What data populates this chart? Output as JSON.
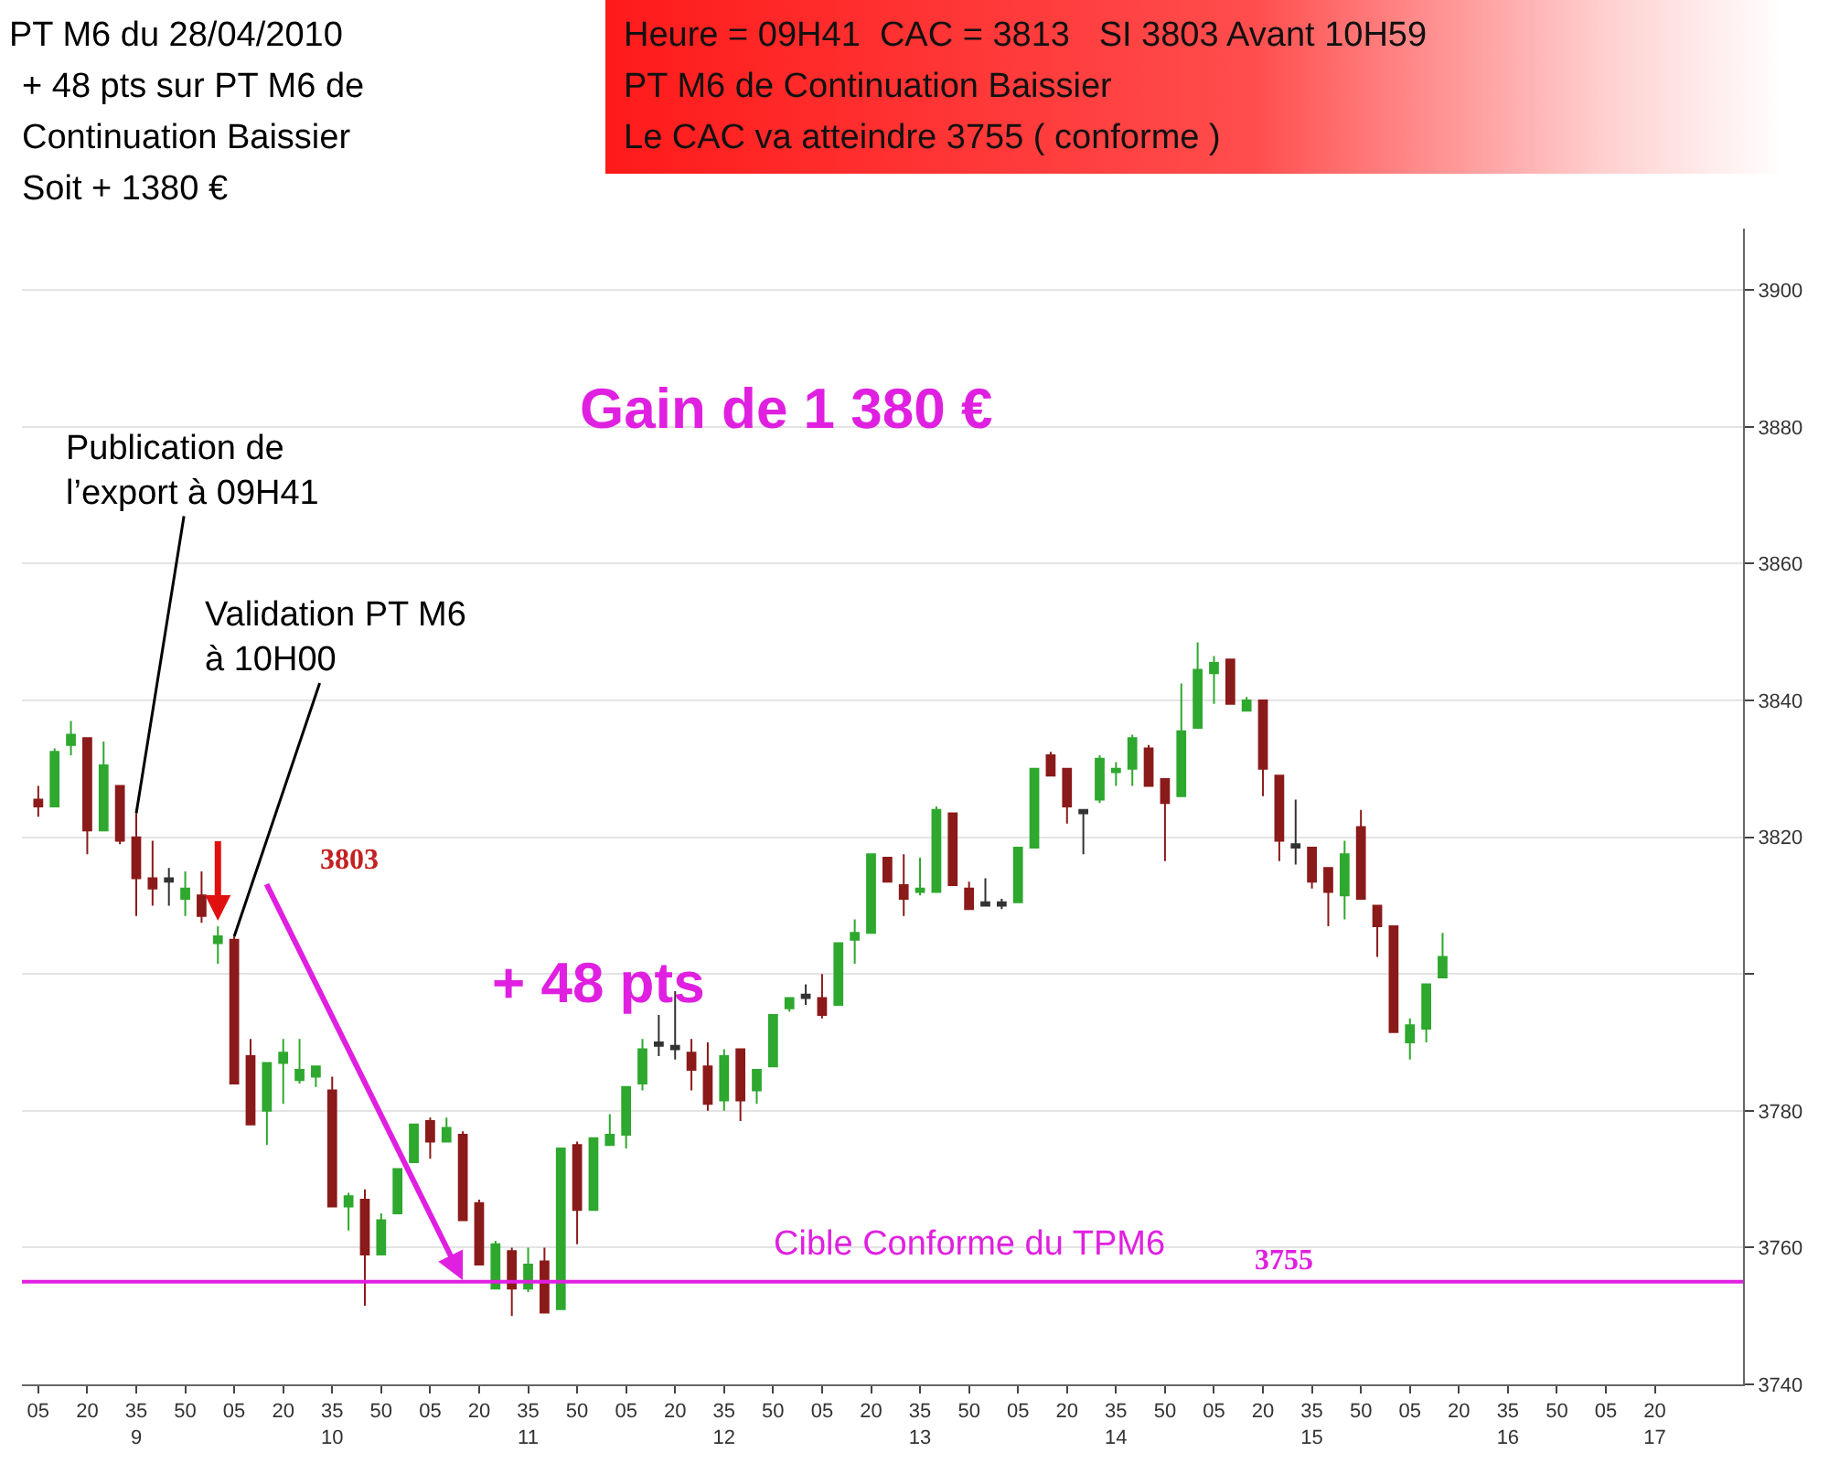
{
  "chart_data": {
    "type": "candlestick",
    "title": "PT M6 du 28/04/2010",
    "subtitle": "+ 48 pts sur PT M6 de\nContinuation Baissier\nSoit + 1380 €",
    "x": [
      "2010-04-28T09:05",
      "2010-04-28T09:10",
      "2010-04-28T09:15",
      "2010-04-28T09:20",
      "2010-04-28T09:25",
      "2010-04-28T09:30",
      "2010-04-28T09:35",
      "2010-04-28T09:40",
      "2010-04-28T09:45",
      "2010-04-28T09:50",
      "2010-04-28T09:55",
      "2010-04-28T10:00",
      "2010-04-28T10:05",
      "2010-04-28T10:10",
      "2010-04-28T10:15",
      "2010-04-28T10:20",
      "2010-04-28T10:25",
      "2010-04-28T10:30",
      "2010-04-28T10:35",
      "2010-04-28T10:40",
      "2010-04-28T10:45",
      "2010-04-28T10:50",
      "2010-04-28T10:55",
      "2010-04-28T11:00",
      "2010-04-28T11:05",
      "2010-04-28T11:10",
      "2010-04-28T11:15",
      "2010-04-28T11:20",
      "2010-04-28T11:25",
      "2010-04-28T11:30",
      "2010-04-28T11:35",
      "2010-04-28T11:40",
      "2010-04-28T11:45",
      "2010-04-28T11:50",
      "2010-04-28T11:55",
      "2010-04-28T12:00",
      "2010-04-28T12:05",
      "2010-04-28T12:10",
      "2010-04-28T12:15",
      "2010-04-28T12:20",
      "2010-04-28T12:25",
      "2010-04-28T12:30",
      "2010-04-28T12:35",
      "2010-04-28T12:40",
      "2010-04-28T12:45",
      "2010-04-28T12:50",
      "2010-04-28T12:55",
      "2010-04-28T13:00",
      "2010-04-28T13:05",
      "2010-04-28T13:10",
      "2010-04-28T13:15",
      "2010-04-28T13:20",
      "2010-04-28T13:25",
      "2010-04-28T13:30",
      "2010-04-28T13:35",
      "2010-04-28T13:40",
      "2010-04-28T13:45",
      "2010-04-28T13:50",
      "2010-04-28T13:55",
      "2010-04-28T14:00",
      "2010-04-28T14:05",
      "2010-04-28T14:10",
      "2010-04-28T14:15",
      "2010-04-28T14:20",
      "2010-04-28T14:25",
      "2010-04-28T14:30",
      "2010-04-28T14:35",
      "2010-04-28T14:40",
      "2010-04-28T14:45",
      "2010-04-28T14:50",
      "2010-04-28T14:55",
      "2010-04-28T15:00",
      "2010-04-28T15:05",
      "2010-04-28T15:10",
      "2010-04-28T15:15",
      "2010-04-28T15:20",
      "2010-04-28T15:25",
      "2010-04-28T15:30",
      "2010-04-28T15:35",
      "2010-04-28T15:40",
      "2010-04-28T15:45",
      "2010-04-28T15:50",
      "2010-04-28T15:55",
      "2010-04-28T16:00",
      "2010-04-28T16:05",
      "2010-04-28T16:10",
      "2010-04-28T16:15"
    ],
    "ohlc": [
      [
        3825.5,
        3827.5,
        3823,
        3824.5
      ],
      [
        3824.5,
        3833,
        3824.5,
        3832.5
      ],
      [
        3833.5,
        3837,
        3832,
        3835
      ],
      [
        3834.5,
        3834.5,
        3817.5,
        3821
      ],
      [
        3821,
        3834,
        3821,
        3830.5
      ],
      [
        3827.5,
        3827.5,
        3819,
        3819.5
      ],
      [
        3820,
        3823.5,
        3808.5,
        3814
      ],
      [
        3814,
        3819.5,
        3810,
        3812.5
      ],
      [
        3814,
        3815.5,
        3810,
        3813.5
      ],
      [
        3811,
        3815,
        3808.5,
        3812.5
      ],
      [
        3811.5,
        3815,
        3807.5,
        3808.5
      ],
      [
        3804.5,
        3807,
        3801.5,
        3805.5
      ],
      [
        3805,
        3805.5,
        3784,
        3784
      ],
      [
        3788,
        3790.5,
        3778,
        3778
      ],
      [
        3780,
        3787,
        3775,
        3787
      ],
      [
        3787,
        3790.5,
        3781,
        3788.5
      ],
      [
        3784.5,
        3790.5,
        3784,
        3786
      ],
      [
        3785,
        3786.5,
        3783.5,
        3786.5
      ],
      [
        3783,
        3785,
        3766,
        3766
      ],
      [
        3766,
        3768,
        3762.5,
        3767.5
      ],
      [
        3767,
        3768.5,
        3751.5,
        3759
      ],
      [
        3759,
        3765,
        3759,
        3764
      ],
      [
        3765,
        3771.5,
        3765,
        3771.5
      ],
      [
        3772.5,
        3778,
        3772.5,
        3778
      ],
      [
        3778.5,
        3779,
        3773,
        3775.5
      ],
      [
        3775.5,
        3779,
        3775.5,
        3777.5
      ],
      [
        3776.5,
        3777,
        3764,
        3764
      ],
      [
        3766.5,
        3767,
        3757.5,
        3757.5
      ],
      [
        3754,
        3761,
        3754,
        3760.5
      ],
      [
        3759.5,
        3760,
        3750,
        3754
      ],
      [
        3754,
        3760,
        3753.5,
        3757.5
      ],
      [
        3758,
        3760,
        3750.5,
        3750.5
      ],
      [
        3751,
        3774.5,
        3751,
        3774.5
      ],
      [
        3775,
        3775.5,
        3760.5,
        3765.5
      ],
      [
        3765.5,
        3776,
        3765.5,
        3776
      ],
      [
        3775,
        3779.5,
        3775,
        3776.5
      ],
      [
        3776.5,
        3783.5,
        3774.5,
        3783.5
      ],
      [
        3784,
        3790.5,
        3783,
        3789
      ],
      [
        3790,
        3794,
        3788,
        3789.5
      ],
      [
        3789.5,
        3797.5,
        3787.5,
        3789
      ],
      [
        3788.5,
        3790.5,
        3783,
        3786
      ],
      [
        3786.5,
        3790,
        3780,
        3781
      ],
      [
        3781.5,
        3789,
        3780,
        3788
      ],
      [
        3789,
        3789,
        3778.5,
        3781.5
      ],
      [
        3783,
        3786,
        3781,
        3786
      ],
      [
        3786.5,
        3794,
        3786.5,
        3794
      ],
      [
        3795,
        3796.5,
        3794.5,
        3796.5
      ],
      [
        3797,
        3798.5,
        3795.5,
        3796.5
      ],
      [
        3796.5,
        3800,
        3793.5,
        3794
      ],
      [
        3795.5,
        3804.5,
        3795.5,
        3804.5
      ],
      [
        3805,
        3808,
        3801.5,
        3806
      ],
      [
        3806,
        3817.5,
        3806,
        3817.5
      ],
      [
        3817,
        3817,
        3813.5,
        3813.5
      ],
      [
        3813,
        3817.5,
        3808.5,
        3811
      ],
      [
        3812,
        3817,
        3811.5,
        3812.5
      ],
      [
        3812,
        3824.5,
        3812,
        3824
      ],
      [
        3823.5,
        3823.5,
        3813,
        3813
      ],
      [
        3812.5,
        3813.5,
        3809.5,
        3809.5
      ],
      [
        3810.5,
        3814,
        3810,
        3810
      ],
      [
        3810.5,
        3811,
        3809.5,
        3810
      ],
      [
        3810.5,
        3818.5,
        3810.5,
        3818.5
      ],
      [
        3818.5,
        3830,
        3818.5,
        3830
      ],
      [
        3832,
        3832.5,
        3829,
        3829
      ],
      [
        3830,
        3830,
        3822,
        3824.5
      ],
      [
        3824,
        3824,
        3817.5,
        3823.5
      ],
      [
        3825.5,
        3832,
        3825,
        3831.5
      ],
      [
        3829.5,
        3831,
        3827.5,
        3830
      ],
      [
        3830,
        3835,
        3827.5,
        3834.5
      ],
      [
        3833,
        3833.5,
        3827.5,
        3827.5
      ],
      [
        3828.5,
        3828.5,
        3816.5,
        3825
      ],
      [
        3826,
        3842.5,
        3826,
        3835.5
      ],
      [
        3836,
        3848.5,
        3836,
        3844.5
      ],
      [
        3844,
        3846.5,
        3839.5,
        3845.5
      ],
      [
        3846,
        3846,
        3839.5,
        3839.5
      ],
      [
        3838.5,
        3840.5,
        3838.5,
        3840
      ],
      [
        3840,
        3840,
        3826,
        3830
      ],
      [
        3829,
        3829,
        3816.5,
        3819.5
      ],
      [
        3819,
        3825.5,
        3816,
        3818.5
      ],
      [
        3818.5,
        3818.5,
        3812.5,
        3813.5
      ],
      [
        3815.5,
        3815.5,
        3807,
        3812
      ],
      [
        3811.5,
        3819.5,
        3808,
        3817.5
      ],
      [
        3821.5,
        3824,
        3811,
        3811
      ],
      [
        3810,
        3810,
        3802.5,
        3807
      ],
      [
        3807,
        3807,
        3791.5,
        3791.5
      ],
      [
        3790,
        3793.5,
        3787.5,
        3792.5
      ],
      [
        3792,
        3798.5,
        3790,
        3798.5
      ],
      [
        3799.5,
        3806,
        3799.5,
        3802.5
      ]
    ],
    "colors": [
      "#8b1a1a",
      "#2ea82e",
      "#2ea82e",
      "#8b1a1a",
      "#2ea82e",
      "#8b1a1a",
      "#8b1a1a",
      "#8b1a1a",
      "#333333",
      "#2ea82e",
      "#8b1a1a",
      "#2ea82e",
      "#8b1a1a",
      "#8b1a1a",
      "#2ea82e",
      "#2ea82e",
      "#2ea82e",
      "#2ea82e",
      "#8b1a1a",
      "#2ea82e",
      "#8b1a1a",
      "#2ea82e",
      "#2ea82e",
      "#2ea82e",
      "#8b1a1a",
      "#2ea82e",
      "#8b1a1a",
      "#8b1a1a",
      "#2ea82e",
      "#8b1a1a",
      "#2ea82e",
      "#8b1a1a",
      "#2ea82e",
      "#8b1a1a",
      "#2ea82e",
      "#2ea82e",
      "#2ea82e",
      "#2ea82e",
      "#333333",
      "#333333",
      "#8b1a1a",
      "#8b1a1a",
      "#2ea82e",
      "#8b1a1a",
      "#2ea82e",
      "#2ea82e",
      "#2ea82e",
      "#333333",
      "#8b1a1a",
      "#2ea82e",
      "#2ea82e",
      "#2ea82e",
      "#8b1a1a",
      "#8b1a1a",
      "#2ea82e",
      "#2ea82e",
      "#8b1a1a",
      "#8b1a1a",
      "#333333",
      "#333333",
      "#2ea82e",
      "#2ea82e",
      "#8b1a1a",
      "#8b1a1a",
      "#333333",
      "#2ea82e",
      "#2ea82e",
      "#2ea82e",
      "#8b1a1a",
      "#8b1a1a",
      "#2ea82e",
      "#2ea82e",
      "#2ea82e",
      "#8b1a1a",
      "#2ea82e",
      "#8b1a1a",
      "#8b1a1a",
      "#333333",
      "#8b1a1a",
      "#8b1a1a",
      "#2ea82e",
      "#8b1a1a",
      "#8b1a1a",
      "#8b1a1a",
      "#2ea82e",
      "#2ea82e",
      "#2ea82e"
    ],
    "xlim": [
      "2010-04-28T09:00",
      "2010-04-28T17:47"
    ],
    "xticks": [
      {
        "value": "2010-04-28T09:05",
        "label": "05"
      },
      {
        "value": "2010-04-28T09:20",
        "label": "20"
      },
      {
        "value": "2010-04-28T09:35",
        "label": "35\n9"
      },
      {
        "value": "2010-04-28T09:50",
        "label": "50"
      },
      {
        "value": "2010-04-28T10:05",
        "label": "05"
      },
      {
        "value": "2010-04-28T10:20",
        "label": "20"
      },
      {
        "value": "2010-04-28T10:35",
        "label": "35\n10"
      },
      {
        "value": "2010-04-28T10:50",
        "label": "50"
      },
      {
        "value": "2010-04-28T11:05",
        "label": "05"
      },
      {
        "value": "2010-04-28T11:20",
        "label": "20"
      },
      {
        "value": "2010-04-28T11:35",
        "label": "35\n11"
      },
      {
        "value": "2010-04-28T11:50",
        "label": "50"
      },
      {
        "value": "2010-04-28T12:05",
        "label": "05"
      },
      {
        "value": "2010-04-28T12:20",
        "label": "20"
      },
      {
        "value": "2010-04-28T12:35",
        "label": "35\n12"
      },
      {
        "value": "2010-04-28T12:50",
        "label": "50"
      },
      {
        "value": "2010-04-28T13:05",
        "label": "05"
      },
      {
        "value": "2010-04-28T13:20",
        "label": "20"
      },
      {
        "value": "2010-04-28T13:35",
        "label": "35\n13"
      },
      {
        "value": "2010-04-28T13:50",
        "label": "50"
      },
      {
        "value": "2010-04-28T14:05",
        "label": "05"
      },
      {
        "value": "2010-04-28T14:20",
        "label": "20"
      },
      {
        "value": "2010-04-28T14:35",
        "label": "35\n14"
      },
      {
        "value": "2010-04-28T14:50",
        "label": "50"
      },
      {
        "value": "2010-04-28T15:05",
        "label": "05"
      },
      {
        "value": "2010-04-28T15:20",
        "label": "20"
      },
      {
        "value": "2010-04-28T15:35",
        "label": "35\n15"
      },
      {
        "value": "2010-04-28T15:50",
        "label": "50"
      },
      {
        "value": "2010-04-28T16:05",
        "label": "05"
      },
      {
        "value": "2010-04-28T16:20",
        "label": "20"
      },
      {
        "value": "2010-04-28T16:35",
        "label": "35\n16"
      },
      {
        "value": "2010-04-28T16:50",
        "label": "50"
      },
      {
        "value": "2010-04-28T17:05",
        "label": "05"
      },
      {
        "value": "2010-04-28T17:20",
        "label": "20\n17"
      }
    ],
    "ylim": [
      3740,
      3909
    ],
    "yticks": [
      3740,
      3760,
      3780,
      {
        "value": 3800,
        "label": null
      },
      3820,
      3840,
      3860,
      3880,
      3900
    ],
    "grid": "y",
    "ref_lines": [
      {
        "axis": "y",
        "value": 3755,
        "label": "Cible Conforme du TPM6",
        "color": "#e020e0"
      }
    ],
    "annotations": [
      "Heure = 09H41  CAC = 3813   SI 3803 Avant 10H59\nPT M6 de Continuation Baissier\nLe CAC va atteindre 3755 ( conforme )",
      "Gain de 1 380 €",
      {
        "text": "Publication de\nl’export à 09H41",
        "x": "2010-04-28T09:35",
        "y": 3823.5
      },
      {
        "text": "Validation PT M6\nà 10H00",
        "x": "2010-04-28T10:05",
        "y": 3805.5
      },
      "3803",
      "+ 48 pts",
      "3755"
    ]
  }
}
